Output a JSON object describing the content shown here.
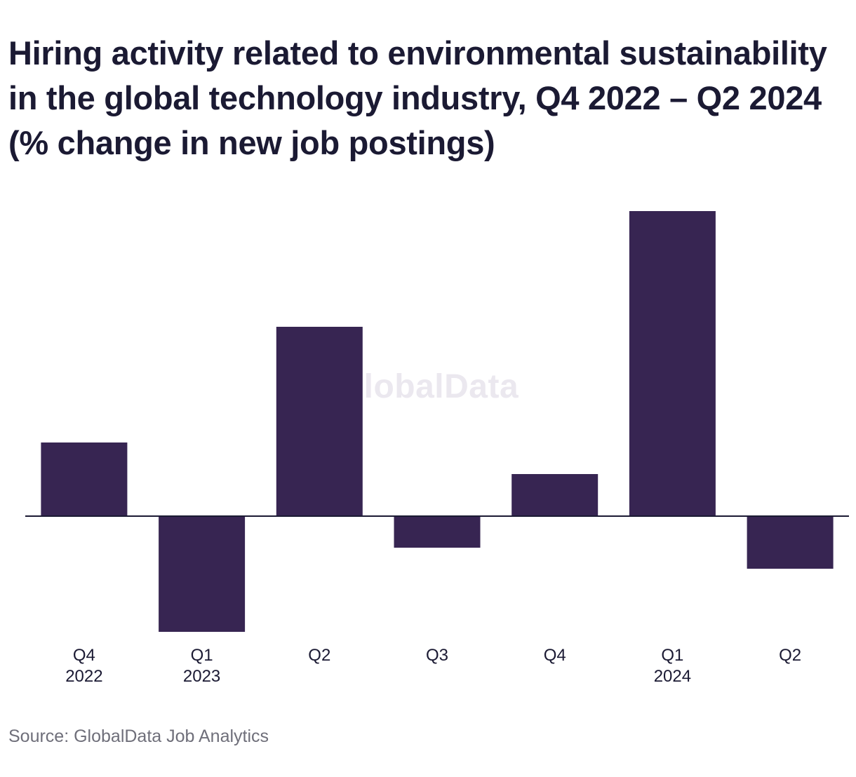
{
  "chart_data": {
    "type": "bar",
    "title": "Hiring activity related to environmental sustainability in the global technology industry, Q4 2022 – Q2 2024 (% change in new job postings)",
    "categories": [
      [
        "Q4",
        "2022"
      ],
      [
        "Q1",
        "2023"
      ],
      [
        "Q2",
        ""
      ],
      [
        "Q3",
        ""
      ],
      [
        "Q4",
        ""
      ],
      [
        "Q1",
        "2024"
      ],
      [
        "Q2",
        ""
      ]
    ],
    "values": [
      14,
      -22,
      36,
      -6,
      8,
      58,
      -10
    ],
    "ylim": [
      -26,
      62
    ],
    "xlabel": "",
    "ylabel": "",
    "grid": false,
    "bar_color": "#372552",
    "source": "Source: GlobalData Job Analytics",
    "watermark": "GlobalData"
  }
}
